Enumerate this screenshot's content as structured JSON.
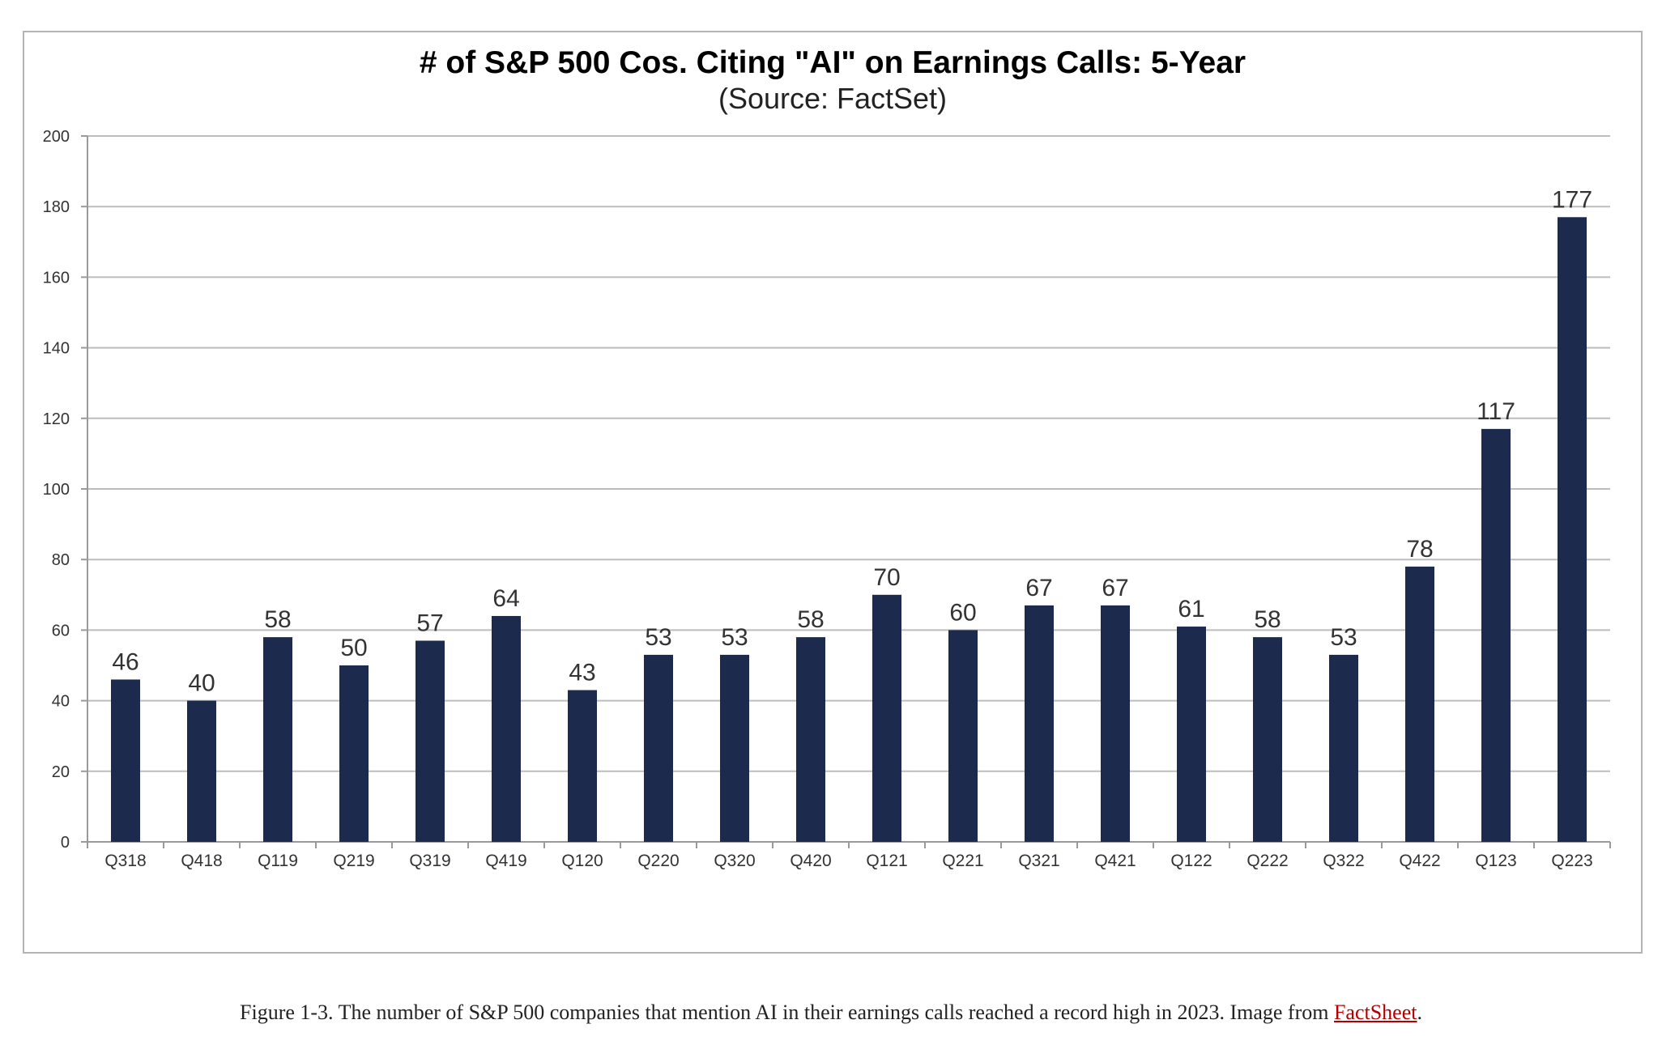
{
  "chart_data": {
    "type": "bar",
    "title": "# of S&P 500 Cos. Citing \"AI\" on Earnings Calls: 5-Year",
    "subtitle": "(Source: FactSet)",
    "xlabel": "",
    "ylabel": "",
    "ylim": [
      0,
      200
    ],
    "yticks": [
      0,
      20,
      40,
      60,
      80,
      100,
      120,
      140,
      160,
      180,
      200
    ],
    "grid": true,
    "legend": "none",
    "bar_color": "#1c2a4d",
    "categories": [
      "Q318",
      "Q418",
      "Q119",
      "Q219",
      "Q319",
      "Q419",
      "Q120",
      "Q220",
      "Q320",
      "Q420",
      "Q121",
      "Q221",
      "Q321",
      "Q421",
      "Q122",
      "Q222",
      "Q322",
      "Q422",
      "Q123",
      "Q223"
    ],
    "values": [
      46,
      40,
      58,
      50,
      57,
      64,
      43,
      53,
      53,
      58,
      70,
      60,
      67,
      67,
      61,
      58,
      53,
      78,
      117,
      177
    ],
    "data_labels": true
  },
  "caption": {
    "text": "Figure 1-3. The number of S&P 500 companies that mention AI in their earnings calls reached a record high in 2023. Image from ",
    "link_text": "FactSheet",
    "suffix": "."
  },
  "colors": {
    "bar": "#1c2a4d",
    "grid": "#bdbdbd",
    "link": "#b00000",
    "frame": "#b4b4b4"
  }
}
